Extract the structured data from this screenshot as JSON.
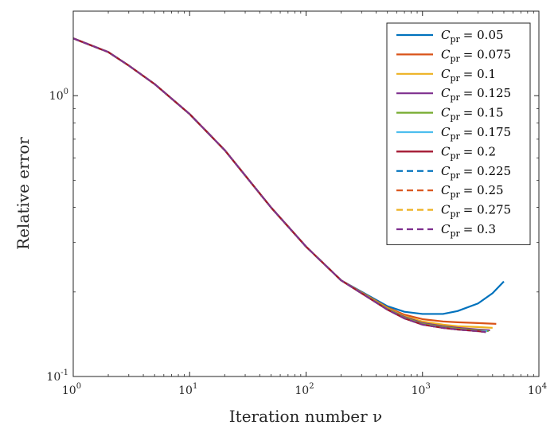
{
  "chart_data": {
    "type": "line",
    "xlabel": "Iteration number ν",
    "ylabel": "Relative error",
    "xscale": "log",
    "yscale": "log",
    "xlim": [
      1,
      10000
    ],
    "ylim": [
      0.1,
      2.0
    ],
    "xticks": [
      {
        "value": 1,
        "mant": "10",
        "exp": "0"
      },
      {
        "value": 10,
        "mant": "10",
        "exp": "1"
      },
      {
        "value": 100,
        "mant": "10",
        "exp": "2"
      },
      {
        "value": 1000,
        "mant": "10",
        "exp": "3"
      },
      {
        "value": 10000,
        "mant": "10",
        "exp": "4"
      }
    ],
    "yticks": [
      {
        "value": 0.1,
        "mant": "10",
        "exp": "-1"
      },
      {
        "value": 1,
        "mant": "10",
        "exp": "0"
      }
    ],
    "grid": false,
    "legend_position": "top-right",
    "series": [
      {
        "name": "= 0.05",
        "color": "#0072BD",
        "dash": "solid",
        "x": [
          1,
          2,
          3,
          5,
          10,
          20,
          50,
          100,
          200,
          500,
          700,
          1000,
          1500,
          2000,
          3000,
          4000,
          5000
        ],
        "y": [
          1.6,
          1.43,
          1.28,
          1.1,
          0.86,
          0.64,
          0.4,
          0.29,
          0.22,
          0.178,
          0.17,
          0.167,
          0.167,
          0.171,
          0.182,
          0.198,
          0.218
        ]
      },
      {
        "name": "= 0.075",
        "color": "#D95319",
        "dash": "solid",
        "x": [
          1,
          2,
          3,
          5,
          10,
          20,
          50,
          100,
          200,
          500,
          700,
          1000,
          1500,
          2000,
          3000,
          4300
        ],
        "y": [
          1.6,
          1.43,
          1.28,
          1.1,
          0.86,
          0.64,
          0.4,
          0.29,
          0.22,
          0.176,
          0.166,
          0.16,
          0.157,
          0.156,
          0.155,
          0.154
        ]
      },
      {
        "name": "= 0.1",
        "color": "#EDB120",
        "dash": "solid",
        "x": [
          1,
          2,
          3,
          5,
          10,
          20,
          50,
          100,
          200,
          500,
          700,
          1000,
          1500,
          2000,
          3000,
          4000
        ],
        "y": [
          1.6,
          1.43,
          1.28,
          1.1,
          0.86,
          0.64,
          0.4,
          0.29,
          0.22,
          0.175,
          0.164,
          0.157,
          0.153,
          0.151,
          0.15,
          0.149
        ]
      },
      {
        "name": "= 0.125",
        "color": "#7E2F8E",
        "dash": "solid",
        "x": [
          1,
          2,
          3,
          5,
          10,
          20,
          50,
          100,
          200,
          500,
          700,
          1000,
          1500,
          2000,
          3000,
          3800
        ],
        "y": [
          1.6,
          1.43,
          1.28,
          1.1,
          0.86,
          0.64,
          0.4,
          0.29,
          0.22,
          0.174,
          0.163,
          0.155,
          0.151,
          0.149,
          0.147,
          0.146
        ]
      },
      {
        "name": "= 0.15",
        "color": "#77AC30",
        "dash": "solid",
        "x": [
          1,
          2,
          3,
          5,
          10,
          20,
          50,
          100,
          200,
          500,
          700,
          1000,
          1500,
          2000,
          3000,
          3700
        ],
        "y": [
          1.6,
          1.43,
          1.28,
          1.1,
          0.86,
          0.64,
          0.4,
          0.29,
          0.22,
          0.174,
          0.162,
          0.154,
          0.15,
          0.148,
          0.146,
          0.145
        ]
      },
      {
        "name": "= 0.175",
        "color": "#4DBEEE",
        "dash": "solid",
        "x": [
          1,
          2,
          3,
          5,
          10,
          20,
          50,
          100,
          200,
          500,
          700,
          1000,
          1500,
          2000,
          3000,
          3600
        ],
        "y": [
          1.6,
          1.43,
          1.28,
          1.1,
          0.86,
          0.64,
          0.4,
          0.29,
          0.22,
          0.173,
          0.161,
          0.153,
          0.149,
          0.147,
          0.145,
          0.145
        ]
      },
      {
        "name": "= 0.2",
        "color": "#A2142F",
        "dash": "solid",
        "x": [
          1,
          2,
          3,
          5,
          10,
          20,
          50,
          100,
          200,
          500,
          700,
          1000,
          1500,
          2000,
          3000,
          3500
        ],
        "y": [
          1.6,
          1.43,
          1.28,
          1.1,
          0.86,
          0.64,
          0.4,
          0.29,
          0.22,
          0.173,
          0.161,
          0.153,
          0.149,
          0.147,
          0.145,
          0.144
        ]
      },
      {
        "name": "= 0.225",
        "color": "#0072BD",
        "dash": "dashed",
        "x": [
          1,
          2,
          3,
          5,
          10,
          20,
          50,
          100,
          200,
          500,
          700,
          1000,
          1500,
          2000,
          3000,
          3500
        ],
        "y": [
          1.6,
          1.43,
          1.28,
          1.1,
          0.86,
          0.64,
          0.4,
          0.29,
          0.22,
          0.173,
          0.161,
          0.153,
          0.149,
          0.147,
          0.145,
          0.144
        ]
      },
      {
        "name": "= 0.25",
        "color": "#D95319",
        "dash": "dashed",
        "x": [
          1,
          2,
          3,
          5,
          10,
          20,
          50,
          100,
          200,
          500,
          700,
          1000,
          1500,
          2000,
          3000,
          3500
        ],
        "y": [
          1.6,
          1.43,
          1.28,
          1.1,
          0.86,
          0.64,
          0.4,
          0.29,
          0.22,
          0.173,
          0.161,
          0.153,
          0.149,
          0.147,
          0.145,
          0.144
        ]
      },
      {
        "name": "= 0.275",
        "color": "#EDB120",
        "dash": "dashed",
        "x": [
          1,
          2,
          3,
          5,
          10,
          20,
          50,
          100,
          200,
          500,
          700,
          1000,
          1500,
          2000,
          3000,
          3500
        ],
        "y": [
          1.6,
          1.43,
          1.28,
          1.1,
          0.86,
          0.64,
          0.4,
          0.29,
          0.22,
          0.173,
          0.161,
          0.153,
          0.149,
          0.147,
          0.145,
          0.144
        ]
      },
      {
        "name": "= 0.3",
        "color": "#7E2F8E",
        "dash": "dashed",
        "x": [
          1,
          2,
          3,
          5,
          10,
          20,
          50,
          100,
          200,
          500,
          700,
          1000,
          1500,
          2000,
          3000,
          3500
        ],
        "y": [
          1.6,
          1.43,
          1.28,
          1.1,
          0.86,
          0.64,
          0.4,
          0.29,
          0.22,
          0.173,
          0.161,
          0.153,
          0.149,
          0.147,
          0.145,
          0.144
        ]
      }
    ]
  }
}
